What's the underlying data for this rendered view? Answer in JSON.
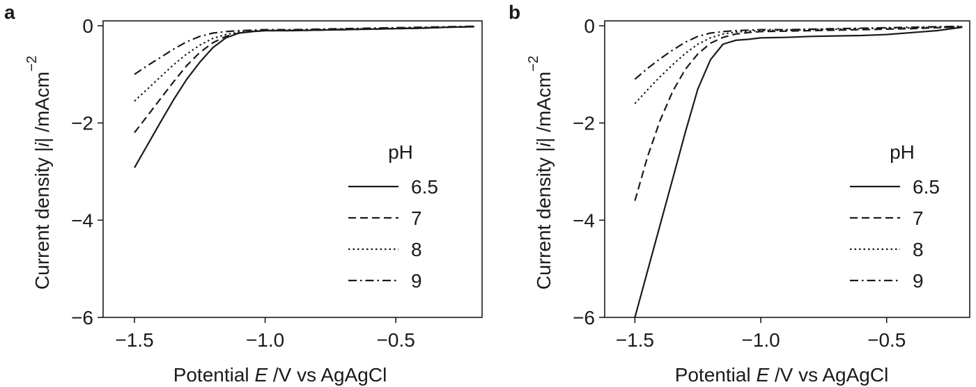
{
  "chart_data": [
    {
      "panel": "a",
      "type": "line",
      "xlabel_pre": "Potential ",
      "xlabel_var": "E",
      "xlabel_post": " /V vs AgAgCl",
      "ylabel_pre": "Current density |",
      "ylabel_var": "i",
      "ylabel_post": "| /mAcm",
      "ylabel_sup": "−2",
      "xlim": [
        -1.62,
        -0.17
      ],
      "ylim": [
        -6,
        0.1
      ],
      "xticks": [
        -1.5,
        -1.0,
        -0.5
      ],
      "xtick_labels": [
        "−1.5",
        "−1.0",
        "−0.5"
      ],
      "yticks": [
        0,
        -2,
        -4,
        -6
      ],
      "ytick_labels": [
        "0",
        "−2",
        "−4",
        "−6"
      ],
      "legend": {
        "title": "pH",
        "position": "lower-right"
      },
      "series": [
        {
          "name": "6.5",
          "style": "solid",
          "x": [
            -1.5,
            -1.45,
            -1.4,
            -1.35,
            -1.3,
            -1.25,
            -1.2,
            -1.15,
            -1.1,
            -1.05,
            -1.0,
            -0.9,
            -0.8,
            -0.7,
            -0.6,
            -0.5,
            -0.4,
            -0.3,
            -0.2
          ],
          "y": [
            -2.92,
            -2.45,
            -1.98,
            -1.52,
            -1.1,
            -0.75,
            -0.45,
            -0.25,
            -0.15,
            -0.12,
            -0.1,
            -0.1,
            -0.09,
            -0.08,
            -0.07,
            -0.06,
            -0.05,
            -0.03,
            -0.02
          ]
        },
        {
          "name": "7",
          "style": "dashed",
          "x": [
            -1.5,
            -1.45,
            -1.4,
            -1.35,
            -1.3,
            -1.25,
            -1.2,
            -1.15,
            -1.1,
            -1.05,
            -1.0,
            -0.9,
            -0.8,
            -0.7,
            -0.6,
            -0.5,
            -0.4,
            -0.3,
            -0.2
          ],
          "y": [
            -2.2,
            -1.85,
            -1.5,
            -1.15,
            -0.82,
            -0.55,
            -0.35,
            -0.22,
            -0.15,
            -0.12,
            -0.1,
            -0.1,
            -0.09,
            -0.08,
            -0.07,
            -0.06,
            -0.05,
            -0.03,
            -0.02
          ]
        },
        {
          "name": "8",
          "style": "dotted",
          "x": [
            -1.5,
            -1.45,
            -1.4,
            -1.35,
            -1.3,
            -1.25,
            -1.2,
            -1.15,
            -1.1,
            -1.05,
            -1.0,
            -0.9,
            -0.8,
            -0.7,
            -0.6,
            -0.5,
            -0.4,
            -0.3,
            -0.2
          ],
          "y": [
            -1.55,
            -1.3,
            -1.05,
            -0.8,
            -0.58,
            -0.4,
            -0.26,
            -0.18,
            -0.13,
            -0.11,
            -0.1,
            -0.09,
            -0.08,
            -0.07,
            -0.06,
            -0.05,
            -0.04,
            -0.03,
            -0.02
          ]
        },
        {
          "name": "9",
          "style": "dashdot",
          "x": [
            -1.5,
            -1.45,
            -1.4,
            -1.35,
            -1.3,
            -1.25,
            -1.2,
            -1.15,
            -1.1,
            -1.05,
            -1.0,
            -0.9,
            -0.8,
            -0.7,
            -0.6,
            -0.5,
            -0.4,
            -0.3,
            -0.2
          ],
          "y": [
            -1.0,
            -0.82,
            -0.65,
            -0.48,
            -0.33,
            -0.22,
            -0.15,
            -0.12,
            -0.1,
            -0.09,
            -0.08,
            -0.08,
            -0.07,
            -0.06,
            -0.05,
            -0.04,
            -0.03,
            -0.02,
            -0.01
          ]
        }
      ]
    },
    {
      "panel": "b",
      "type": "line",
      "xlabel_pre": "Potential ",
      "xlabel_var": "E",
      "xlabel_post": " /V vs AgAgCl",
      "ylabel_pre": "Current density |",
      "ylabel_var": "i",
      "ylabel_post": "| /mAcm",
      "ylabel_sup": "−2",
      "xlim": [
        -1.62,
        -0.17
      ],
      "ylim": [
        -6,
        0.1
      ],
      "xticks": [
        -1.5,
        -1.0,
        -0.5
      ],
      "xtick_labels": [
        "−1.5",
        "−1.0",
        "−0.5"
      ],
      "yticks": [
        0,
        -2,
        -4,
        -6
      ],
      "ytick_labels": [
        "0",
        "−2",
        "−4",
        "−6"
      ],
      "legend": {
        "title": "pH",
        "position": "lower-right"
      },
      "series": [
        {
          "name": "6.5",
          "style": "solid",
          "x": [
            -1.5,
            -1.45,
            -1.4,
            -1.35,
            -1.3,
            -1.25,
            -1.2,
            -1.15,
            -1.1,
            -1.05,
            -1.0,
            -0.9,
            -0.8,
            -0.7,
            -0.6,
            -0.5,
            -0.4,
            -0.3,
            -0.2
          ],
          "y": [
            -6.0,
            -5.05,
            -4.1,
            -3.15,
            -2.2,
            -1.3,
            -0.7,
            -0.38,
            -0.3,
            -0.28,
            -0.25,
            -0.24,
            -0.22,
            -0.21,
            -0.2,
            -0.18,
            -0.14,
            -0.1,
            -0.03
          ]
        },
        {
          "name": "7",
          "style": "dashed",
          "x": [
            -1.5,
            -1.45,
            -1.4,
            -1.35,
            -1.3,
            -1.25,
            -1.2,
            -1.15,
            -1.1,
            -1.05,
            -1.0,
            -0.9,
            -0.8,
            -0.7,
            -0.6,
            -0.5,
            -0.4,
            -0.3,
            -0.2
          ],
          "y": [
            -3.6,
            -2.7,
            -1.95,
            -1.35,
            -0.9,
            -0.58,
            -0.36,
            -0.24,
            -0.17,
            -0.14,
            -0.12,
            -0.11,
            -0.1,
            -0.09,
            -0.08,
            -0.07,
            -0.06,
            -0.04,
            -0.02
          ]
        },
        {
          "name": "8",
          "style": "dotted",
          "x": [
            -1.5,
            -1.45,
            -1.4,
            -1.35,
            -1.3,
            -1.25,
            -1.2,
            -1.15,
            -1.1,
            -1.05,
            -1.0,
            -0.9,
            -0.8,
            -0.7,
            -0.6,
            -0.5,
            -0.4,
            -0.3,
            -0.2
          ],
          "y": [
            -1.6,
            -1.32,
            -1.05,
            -0.8,
            -0.57,
            -0.38,
            -0.25,
            -0.17,
            -0.13,
            -0.11,
            -0.1,
            -0.09,
            -0.08,
            -0.07,
            -0.06,
            -0.05,
            -0.04,
            -0.03,
            -0.02
          ]
        },
        {
          "name": "9",
          "style": "dashdot",
          "x": [
            -1.5,
            -1.45,
            -1.4,
            -1.35,
            -1.3,
            -1.25,
            -1.2,
            -1.15,
            -1.1,
            -1.05,
            -1.0,
            -0.9,
            -0.8,
            -0.7,
            -0.6,
            -0.5,
            -0.4,
            -0.3,
            -0.2
          ],
          "y": [
            -1.1,
            -0.88,
            -0.68,
            -0.5,
            -0.34,
            -0.22,
            -0.15,
            -0.12,
            -0.1,
            -0.09,
            -0.08,
            -0.08,
            -0.07,
            -0.06,
            -0.05,
            -0.04,
            -0.03,
            -0.02,
            -0.01
          ]
        }
      ]
    }
  ]
}
